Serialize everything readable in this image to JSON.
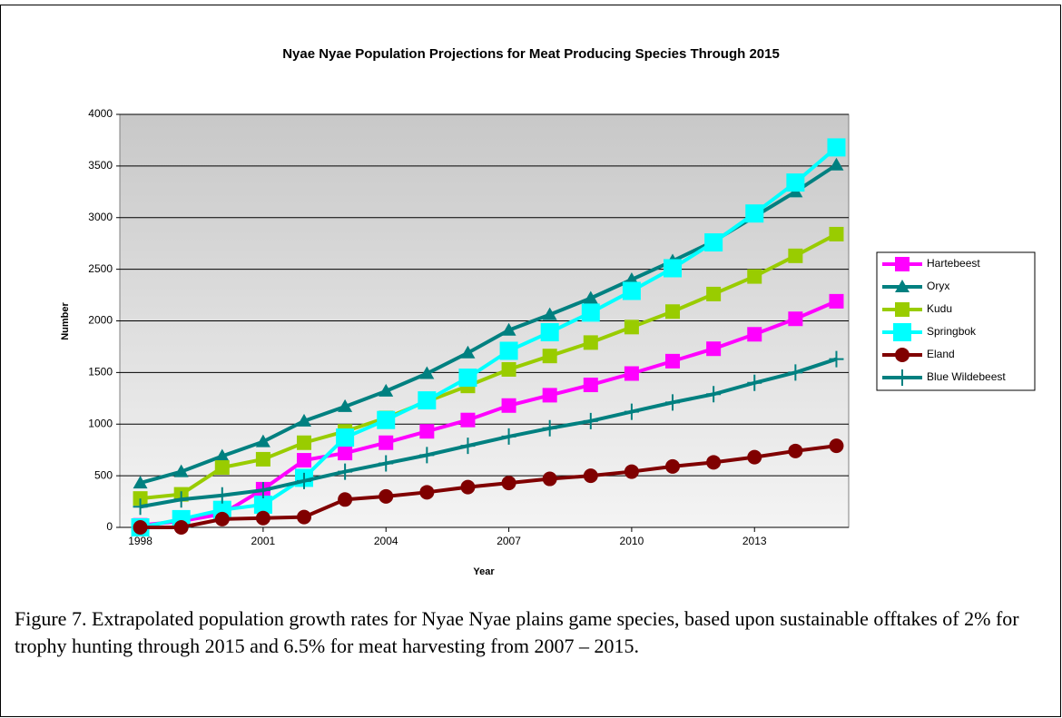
{
  "chart_data": {
    "type": "line",
    "title": "Nyae Nyae Population Projections for Meat Producing Species Through 2015",
    "x_label": "Year",
    "y_label": "Number",
    "x": [
      1998,
      1999,
      2000,
      2001,
      2002,
      2003,
      2004,
      2005,
      2006,
      2007,
      2008,
      2009,
      2010,
      2011,
      2012,
      2013,
      2014,
      2015
    ],
    "xlim": [
      1997.5,
      2015.3
    ],
    "xticks": [
      1998,
      2001,
      2004,
      2007,
      2010,
      2013
    ],
    "ylim": [
      0,
      4000
    ],
    "yticks": [
      0,
      500,
      1000,
      1500,
      2000,
      2500,
      3000,
      3500,
      4000
    ],
    "grid": true,
    "legend": "right",
    "series": [
      {
        "name": "Hartebeest",
        "color": "#ff00ff",
        "marker": "square",
        "values": [
          20,
          60,
          130,
          370,
          650,
          720,
          820,
          930,
          1040,
          1180,
          1280,
          1380,
          1490,
          1610,
          1730,
          1870,
          2020,
          2190
        ]
      },
      {
        "name": "Oryx",
        "color": "#008080",
        "marker": "triangle",
        "values": [
          430,
          540,
          690,
          830,
          1030,
          1170,
          1320,
          1490,
          1690,
          1910,
          2060,
          2220,
          2400,
          2580,
          2770,
          3010,
          3250,
          3510
        ]
      },
      {
        "name": "Kudu",
        "color": "#99cc00",
        "marker": "square",
        "values": [
          280,
          320,
          580,
          660,
          820,
          930,
          1060,
          1220,
          1370,
          1530,
          1660,
          1790,
          1940,
          2090,
          2260,
          2430,
          2630,
          2840
        ]
      },
      {
        "name": "Springbok",
        "color": "#00ffff",
        "marker": "bigsquare",
        "values": [
          0,
          80,
          170,
          220,
          480,
          870,
          1040,
          1230,
          1450,
          1710,
          1890,
          2080,
          2290,
          2510,
          2760,
          3040,
          3340,
          3680
        ]
      },
      {
        "name": "Eland",
        "color": "#800000",
        "marker": "circle",
        "values": [
          0,
          0,
          80,
          90,
          100,
          270,
          300,
          340,
          390,
          430,
          470,
          500,
          540,
          590,
          630,
          680,
          740,
          790
        ]
      },
      {
        "name": "Blue Wildebeest",
        "color": "#008080",
        "marker": "plus",
        "values": [
          200,
          270,
          310,
          360,
          450,
          540,
          620,
          700,
          790,
          880,
          960,
          1030,
          1120,
          1210,
          1290,
          1400,
          1500,
          1630
        ]
      }
    ]
  },
  "caption": "Figure 7.  Extrapolated population growth rates for Nyae Nyae plains game species, based upon sustainable offtakes of 2% for trophy hunting through 2015 and 6.5% for meat harvesting from 2007 – 2015."
}
